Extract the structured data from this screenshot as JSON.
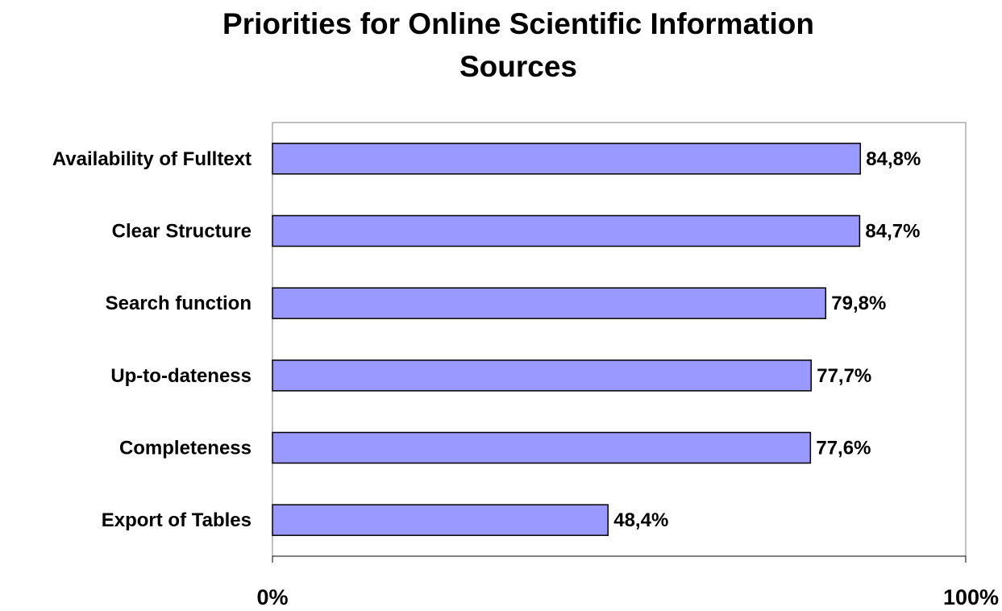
{
  "chart_data": {
    "type": "bar",
    "orientation": "horizontal",
    "title_lines": [
      "Priorities for Online Scientific Information",
      "Sources"
    ],
    "categories": [
      "Availability of Fulltext",
      "Clear Structure",
      "Search function",
      "Up-to-dateness",
      "Completeness",
      "Export of Tables"
    ],
    "values": [
      84.8,
      84.7,
      79.8,
      77.7,
      77.6,
      48.4
    ],
    "data_labels": [
      "84,8%",
      "84,7%",
      "79,8%",
      "77,7%",
      "77,6%",
      "48,4%"
    ],
    "xlim": [
      0,
      100
    ],
    "x_tick_labels": [
      "0%",
      "100%"
    ],
    "grid": false,
    "legend": "none",
    "colors": {
      "bar_fill": "#9999ff",
      "bar_stroke": "#000000",
      "plot_border": "#808080"
    }
  }
}
